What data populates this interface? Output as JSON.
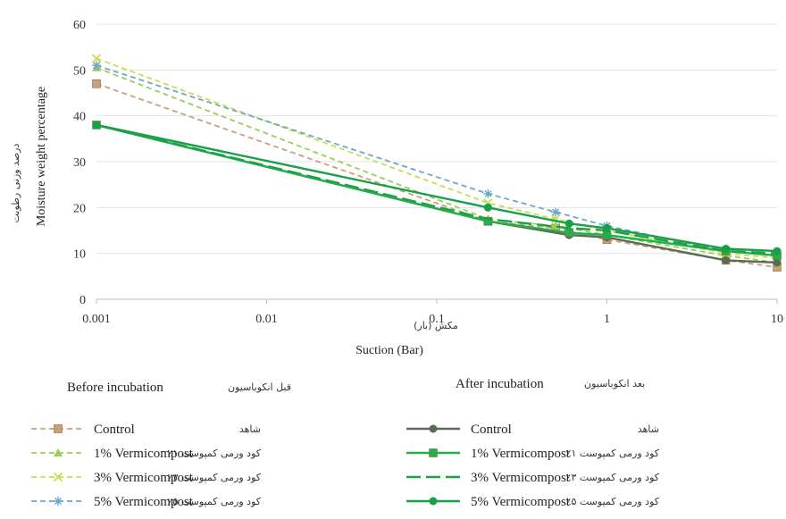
{
  "chart_data": {
    "type": "line",
    "x_scale": "log",
    "xlim": [
      0.001,
      10
    ],
    "ylim": [
      0,
      60
    ],
    "x_ticks": [
      "0.001",
      "0.01",
      "0.1",
      "1",
      "10"
    ],
    "y_ticks": [
      "0",
      "10",
      "20",
      "30",
      "40",
      "50",
      "60"
    ],
    "xlabel_fa": "مکش (بار)",
    "xlabel": "Suction (Bar)",
    "ylabel_fa": "درصد وزنی رطوبت",
    "ylabel": "Moisture weight percentage",
    "grid": "horizontal",
    "before_group": {
      "title": "Before incubation",
      "title_fa": "قبل انکوباسیون",
      "series": [
        {
          "name": "Control",
          "name_fa": "شاهد",
          "color": "#c8a07a",
          "marker": "square",
          "dash": "dashed",
          "x": [
            0.001,
            0.2,
            0.5,
            1,
            5,
            10
          ],
          "y": [
            47,
            17,
            15.5,
            13,
            8.5,
            7
          ]
        },
        {
          "name": "1% Vermicompost",
          "name_fa": "٪۱ کود ورمی کمپوست",
          "color": "#9acd5a",
          "marker": "triangle",
          "dash": "dashed",
          "x": [
            0.001,
            0.2,
            0.5,
            1,
            5,
            10
          ],
          "y": [
            50.5,
            17.5,
            16,
            14,
            9.5,
            8
          ]
        },
        {
          "name": "3% Vermicompost",
          "name_fa": "٪۳ کود ورمی کمپوست",
          "color": "#c8dc50",
          "marker": "x",
          "dash": "dashed",
          "x": [
            0.001,
            0.2,
            0.5,
            1,
            5,
            10
          ],
          "y": [
            52.5,
            21,
            17.5,
            15,
            10,
            9
          ]
        },
        {
          "name": "5% Vermicompost",
          "name_fa": "٪۵ کود ورمی کمپوست",
          "color": "#6aa8c8",
          "marker": "star",
          "dash": "dashed",
          "x": [
            0.001,
            0.2,
            0.5,
            1,
            5,
            10
          ],
          "y": [
            51,
            23,
            19,
            16,
            10.5,
            9.5
          ]
        }
      ]
    },
    "after_group": {
      "title": "After incubation",
      "title_fa": "بعد انکوباسیون",
      "series": [
        {
          "name": "Control",
          "name_fa": "شاهد",
          "color": "#5a6b55",
          "marker": "circle",
          "dash": "solid",
          "x": [
            0.001,
            0.2,
            0.6,
            1,
            5,
            10
          ],
          "y": [
            38,
            17,
            14,
            13.5,
            8.5,
            8
          ]
        },
        {
          "name": "1% Vermicompost",
          "name_fa": "٪۱ کود ورمی کمپوست",
          "color": "#22b04a",
          "marker": "square",
          "dash": "solid",
          "x": [
            0.001,
            0.2,
            0.6,
            1,
            5,
            10
          ],
          "y": [
            38,
            17,
            14.5,
            14,
            10.5,
            9.5
          ]
        },
        {
          "name": "3% Vermicompost",
          "name_fa": "٪۳ کود ورمی کمپوست",
          "color": "#1fa046",
          "marker": "none",
          "dash": "longdash",
          "x": [
            0.001,
            0.2,
            0.6,
            1,
            5,
            10
          ],
          "y": [
            38,
            17.5,
            15.5,
            15,
            10.5,
            10
          ]
        },
        {
          "name": "5% Vermicompost",
          "name_fa": "٪۵ کود ورمی کمپوست",
          "color": "#18a048",
          "marker": "circle",
          "dash": "solid",
          "x": [
            0.001,
            0.2,
            0.6,
            1,
            5,
            10
          ],
          "y": [
            38,
            20,
            16.5,
            15.5,
            11,
            10.5
          ]
        }
      ]
    }
  }
}
